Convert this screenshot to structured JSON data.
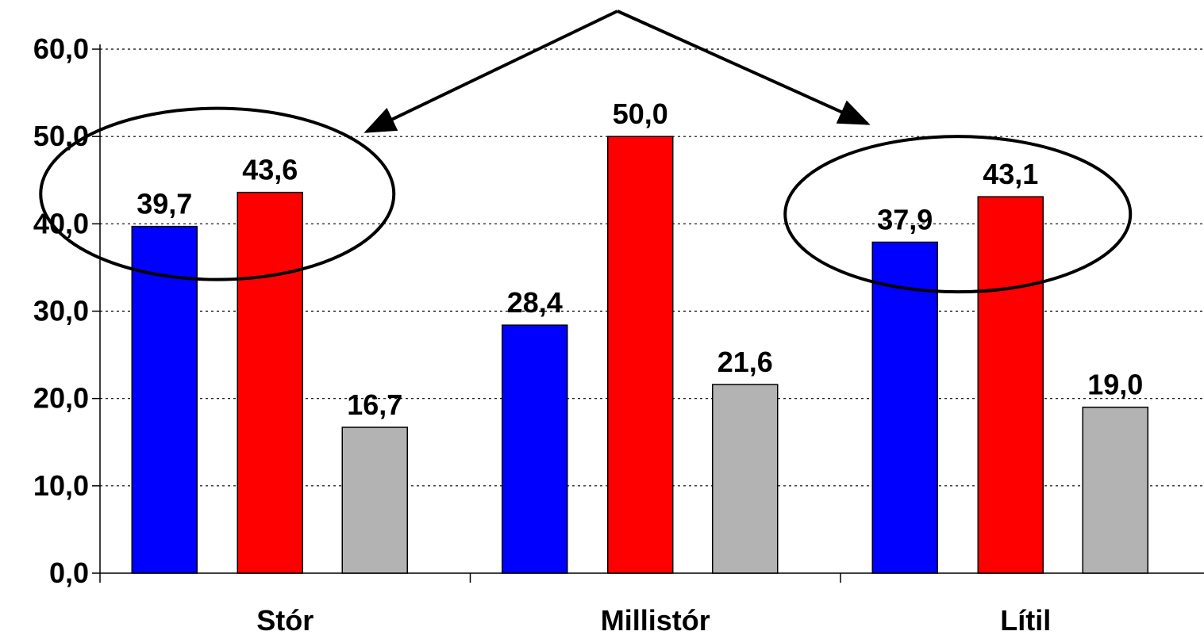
{
  "chart_data": {
    "type": "bar",
    "categories": [
      "Stór",
      "Millistór",
      "Lítil"
    ],
    "series": [
      {
        "color": "#0000ff",
        "values": [
          39.7,
          28.4,
          37.9
        ],
        "value_labels": [
          "39,7",
          "28,4",
          "37,9"
        ]
      },
      {
        "color": "#ff0000",
        "values": [
          43.6,
          50.0,
          43.1
        ],
        "value_labels": [
          "43,6",
          "50,0",
          "43,1"
        ]
      },
      {
        "color": "#b3b3b3",
        "values": [
          16.7,
          21.6,
          19.0
        ],
        "value_labels": [
          "16,7",
          "21,6",
          "19,0"
        ]
      }
    ],
    "ylim": [
      0,
      60
    ],
    "yticks": [
      0,
      10,
      20,
      30,
      40,
      50,
      60
    ],
    "ytick_labels": [
      "0,0",
      "10,0",
      "20,0",
      "30,0",
      "40,0",
      "50,0",
      "60,0"
    ],
    "grid": "horizontal-dashed",
    "legend": "none",
    "annotations": [
      {
        "type": "ellipse",
        "around": [
          "Stór",
          0,
          1
        ]
      },
      {
        "type": "ellipse",
        "around": [
          "Lítil",
          0,
          1
        ]
      },
      {
        "type": "arrows",
        "from": "top-center",
        "to": [
          "Stór",
          "Lítil"
        ]
      }
    ]
  }
}
